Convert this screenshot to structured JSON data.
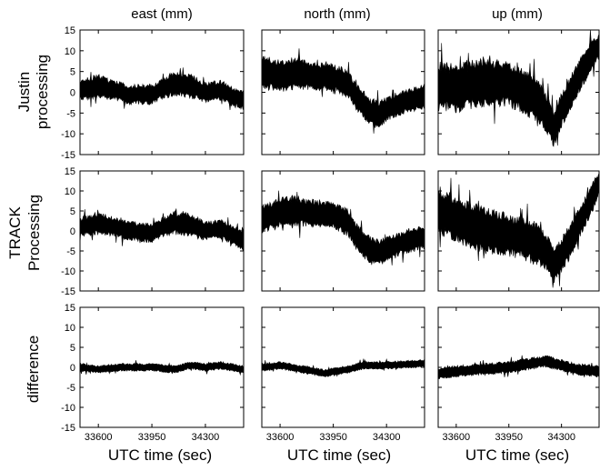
{
  "chart_data": {
    "type": "line",
    "layout": "3x3 grid of panels",
    "columns": [
      "east (mm)",
      "north (mm)",
      "up (mm)"
    ],
    "rows": [
      "Justin processing",
      "TRACK Processing",
      "difference"
    ],
    "row_labels": [
      [
        "Justin",
        "processing"
      ],
      [
        "TRACK",
        "Processing"
      ],
      [
        "difference"
      ]
    ],
    "xlabel": "UTC time (sec)",
    "xlim": [
      33480,
      34550
    ],
    "xticks": [
      33600,
      33950,
      34300
    ],
    "ylim": [
      -15,
      15
    ],
    "yticks": [
      -15,
      -10,
      -5,
      0,
      5,
      10,
      15
    ],
    "grid": false,
    "panels": [
      {
        "row": 0,
        "col": 0,
        "x": [
          33480,
          33600,
          33700,
          33800,
          33950,
          34000,
          34100,
          34200,
          34300,
          34400,
          34480,
          34550
        ],
        "mean": [
          0.5,
          1.5,
          0.5,
          -0.5,
          -0.5,
          0.5,
          2,
          1.5,
          0,
          0.5,
          -1,
          -2
        ],
        "half_width": [
          2.5,
          3,
          2.5,
          2.5,
          2.5,
          2.5,
          3,
          3,
          2.5,
          2.5,
          2.5,
          2.5
        ]
      },
      {
        "row": 0,
        "col": 1,
        "x": [
          33480,
          33600,
          33700,
          33800,
          33950,
          34050,
          34100,
          34150,
          34200,
          34250,
          34300,
          34400,
          34550
        ],
        "mean": [
          5,
          4,
          4.5,
          4,
          3.5,
          2,
          -1,
          -3,
          -5,
          -5.5,
          -4,
          -2.5,
          -1
        ],
        "half_width": [
          4,
          4,
          4,
          3.5,
          3.5,
          3.5,
          3.5,
          3.5,
          3.5,
          3.5,
          3,
          3,
          3
        ]
      },
      {
        "row": 0,
        "col": 2,
        "x": [
          33480,
          33600,
          33800,
          33950,
          34050,
          34150,
          34200,
          34250,
          34300,
          34350,
          34420,
          34500,
          34550
        ],
        "mean": [
          1.5,
          1,
          2.5,
          2,
          0,
          -2,
          -5,
          -9,
          -4,
          -1,
          4,
          9,
          11
        ],
        "half_width": [
          6,
          6,
          6,
          5.5,
          5.5,
          5.5,
          5,
          4.5,
          4.5,
          4.5,
          4,
          4,
          3
        ]
      },
      {
        "row": 1,
        "col": 0,
        "x": [
          33480,
          33600,
          33700,
          33800,
          33950,
          34000,
          34100,
          34200,
          34300,
          34400,
          34480,
          34550
        ],
        "mean": [
          1,
          2,
          1,
          0,
          -0.5,
          0.5,
          2,
          1.5,
          0,
          0.5,
          -1,
          -2.5
        ],
        "half_width": [
          2.5,
          3,
          2.5,
          2.5,
          2.5,
          2.5,
          3,
          3,
          2.5,
          2.5,
          2.5,
          2.5
        ]
      },
      {
        "row": 1,
        "col": 1,
        "x": [
          33480,
          33600,
          33700,
          33800,
          33950,
          34050,
          34100,
          34150,
          34200,
          34250,
          34300,
          34400,
          34550
        ],
        "mean": [
          3,
          4.5,
          5,
          4.5,
          4,
          2,
          -1.5,
          -3.5,
          -5,
          -5.5,
          -4.5,
          -3,
          -1.5
        ],
        "half_width": [
          3.5,
          4,
          4,
          3.5,
          3.5,
          3.5,
          3.5,
          3.5,
          3.5,
          3.5,
          3,
          3,
          3
        ]
      },
      {
        "row": 1,
        "col": 2,
        "x": [
          33480,
          33600,
          33800,
          33950,
          34050,
          34150,
          34200,
          34250,
          34300,
          34350,
          34420,
          34500,
          34550
        ],
        "mean": [
          5,
          3,
          0,
          -1,
          -2,
          -3.5,
          -5,
          -9,
          -6,
          -3,
          2,
          8,
          12
        ],
        "half_width": [
          6,
          6,
          6,
          5.5,
          5.5,
          5.5,
          5,
          4.5,
          4.5,
          4.5,
          4,
          4,
          3
        ]
      },
      {
        "row": 2,
        "col": 0,
        "x": [
          33480,
          33600,
          33750,
          33950,
          34100,
          34200,
          34300,
          34400,
          34550
        ],
        "mean": [
          0,
          -0.5,
          0,
          0,
          -0.5,
          0.5,
          0,
          0.5,
          -0.5
        ],
        "half_width": [
          1,
          1,
          1,
          1,
          1,
          1,
          1,
          1,
          1
        ]
      },
      {
        "row": 2,
        "col": 1,
        "x": [
          33480,
          33600,
          33750,
          33900,
          33950,
          34050,
          34150,
          34300,
          34550
        ],
        "mean": [
          0,
          0.5,
          -0.5,
          -1.5,
          -1,
          -0.5,
          0.5,
          0.5,
          1
        ],
        "half_width": [
          1,
          1,
          1,
          1,
          1,
          1,
          1,
          1,
          1
        ]
      },
      {
        "row": 2,
        "col": 2,
        "x": [
          33480,
          33600,
          33750,
          33950,
          34100,
          34200,
          34300,
          34400,
          34550
        ],
        "mean": [
          -1.5,
          -1,
          -0.5,
          0,
          1,
          1.5,
          0.5,
          -0.5,
          -1
        ],
        "half_width": [
          1.5,
          1.5,
          1.5,
          1.5,
          1.5,
          1.5,
          1.5,
          1.5,
          1.5
        ]
      }
    ]
  }
}
